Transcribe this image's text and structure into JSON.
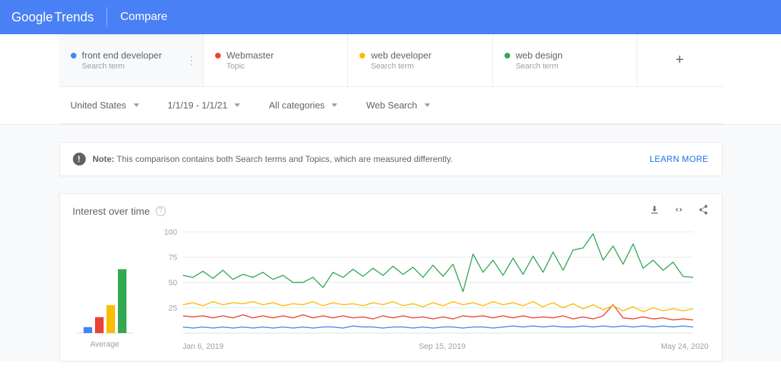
{
  "header": {
    "logo_google": "Google",
    "logo_trends": "Trends",
    "page_title": "Compare"
  },
  "terms": [
    {
      "label": "front end developer",
      "sub": "Search term",
      "color": "#4285f4"
    },
    {
      "label": "Webmaster",
      "sub": "Topic",
      "color": "#ea4335"
    },
    {
      "label": "web developer",
      "sub": "Search term",
      "color": "#fbbc04"
    },
    {
      "label": "web design",
      "sub": "Search term",
      "color": "#34a853"
    }
  ],
  "filters": {
    "region": "United States",
    "time": "1/1/19 - 1/1/21",
    "category": "All categories",
    "search_type": "Web Search"
  },
  "note": {
    "label": "Note:",
    "text": "This comparison contains both Search terms and Topics, which are measured differently.",
    "learn_more": "LEARN MORE"
  },
  "chart": {
    "title": "Interest over time",
    "type": "line",
    "y_ticks": [
      25,
      50,
      75,
      100
    ],
    "ylim": [
      0,
      100
    ],
    "background_color": "#ffffff",
    "grid_color": "#e8eaed",
    "line_width": 1.4,
    "x_labels": [
      "Jan 6, 2019",
      "Sep 15, 2019",
      "May 24, 2020"
    ],
    "series": [
      {
        "name": "front end developer",
        "color": "#4285f4",
        "values": [
          6,
          5,
          6,
          5,
          6,
          5,
          6,
          5,
          6,
          5,
          6,
          5,
          6,
          5,
          6,
          6,
          5,
          7,
          6,
          6,
          5,
          6,
          6,
          5,
          6,
          5,
          6,
          6,
          5,
          6,
          6,
          5,
          6,
          7,
          6,
          7,
          6,
          7,
          6,
          6,
          7,
          6,
          7,
          6,
          7,
          6,
          7,
          6,
          7,
          6,
          7,
          6
        ]
      },
      {
        "name": "Webmaster",
        "color": "#ea4335",
        "values": [
          17,
          16,
          17,
          15,
          17,
          15,
          18,
          15,
          17,
          15,
          17,
          15,
          18,
          15,
          17,
          15,
          17,
          15,
          16,
          14,
          17,
          15,
          17,
          15,
          16,
          14,
          16,
          14,
          17,
          16,
          17,
          15,
          17,
          15,
          17,
          15,
          16,
          15,
          17,
          14,
          16,
          14,
          17,
          28,
          15,
          14,
          16,
          14,
          15,
          13,
          14,
          13
        ]
      },
      {
        "name": "web developer",
        "color": "#fbbc04",
        "values": [
          28,
          30,
          27,
          31,
          28,
          30,
          29,
          31,
          28,
          30,
          27,
          29,
          28,
          31,
          27,
          30,
          28,
          29,
          27,
          30,
          28,
          31,
          27,
          29,
          26,
          30,
          27,
          31,
          28,
          30,
          27,
          31,
          28,
          30,
          27,
          31,
          26,
          30,
          25,
          29,
          24,
          28,
          23,
          27,
          22,
          26,
          21,
          25,
          22,
          24,
          22,
          24
        ]
      },
      {
        "name": "web design",
        "color": "#34a853",
        "values": [
          57,
          55,
          61,
          54,
          62,
          53,
          58,
          55,
          60,
          53,
          57,
          50,
          50,
          55,
          45,
          60,
          55,
          63,
          56,
          64,
          57,
          66,
          58,
          65,
          55,
          67,
          56,
          68,
          41,
          78,
          60,
          72,
          57,
          74,
          58,
          76,
          60,
          80,
          62,
          82,
          84,
          98,
          72,
          86,
          68,
          88,
          64,
          72,
          62,
          70,
          56,
          55
        ]
      }
    ],
    "averages": {
      "label": "Average",
      "bars": [
        {
          "color": "#4285f4",
          "value": 6
        },
        {
          "color": "#ea4335",
          "value": 16
        },
        {
          "color": "#fbbc04",
          "value": 28
        },
        {
          "color": "#34a853",
          "value": 64
        }
      ],
      "max": 100
    }
  }
}
